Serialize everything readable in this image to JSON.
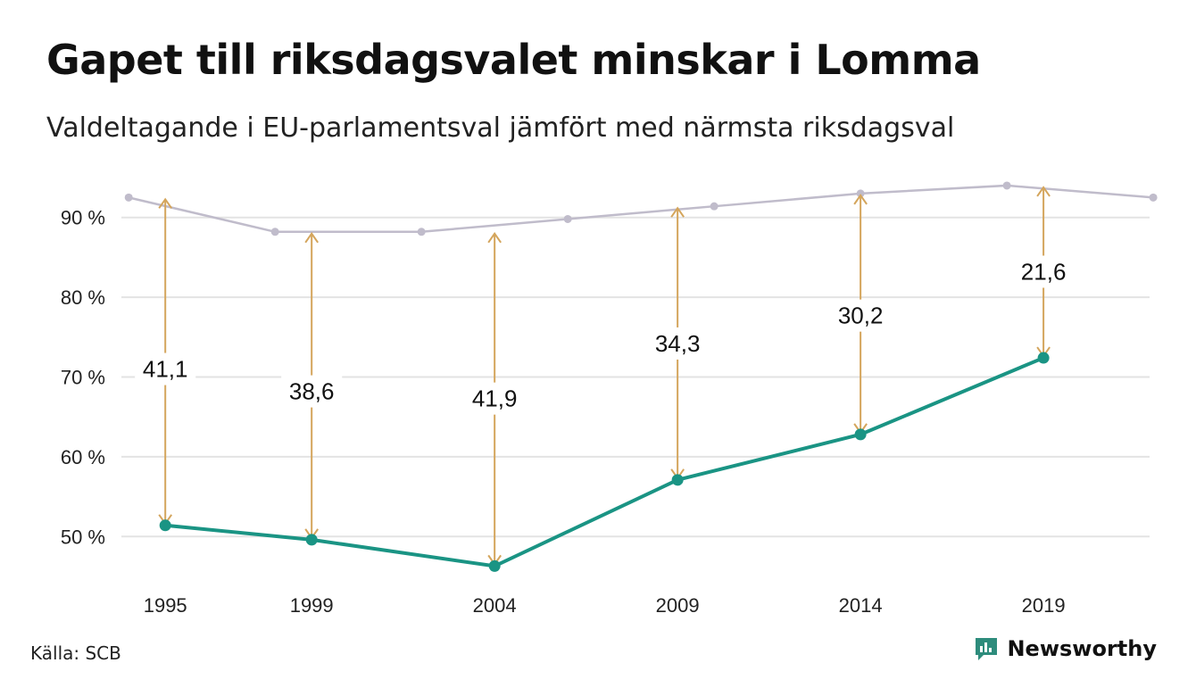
{
  "title": "Gapet till riksdagsvalet minskar i Lomma",
  "subtitle": "Valdeltagande i EU-parlamentsval jämfört med närmsta riksdagsval",
  "source": "Källa: SCB",
  "brand": {
    "name": "Newsworthy",
    "icon": "bar-chart-speech-bubble-icon"
  },
  "colors": {
    "eu": "#1a9484",
    "riksdag": "#c0bccb",
    "gap": "#d4a55c",
    "grid": "#e3e3e3",
    "brand": "#2e8c7c"
  },
  "chart_data": {
    "type": "line",
    "x_ticks": [
      "1995",
      "1999",
      "2004",
      "2009",
      "2014",
      "2019"
    ],
    "y_ticks": [
      "50 %",
      "60 %",
      "70 %",
      "80 %",
      "90 %"
    ],
    "ylim": [
      45,
      95
    ],
    "xlim": [
      1993.8,
      2021.9
    ],
    "grid": true,
    "series": [
      {
        "x": [
          1994,
          1998,
          2002,
          2006,
          2010,
          2014,
          2018,
          2022
        ],
        "values": [
          92.5,
          88.2,
          88.2,
          89.8,
          91.4,
          93.0,
          94.0,
          92.5
        ]
      },
      {
        "x": [
          1995,
          1999,
          2004,
          2009,
          2014,
          2019
        ],
        "values": [
          51.4,
          49.6,
          46.3,
          57.1,
          62.8,
          72.4
        ]
      }
    ],
    "gaps": [
      {
        "x": 1995,
        "top": 92.5,
        "bottom": 51.4,
        "label": "41,1",
        "label_y": 71
      },
      {
        "x": 1999,
        "top": 88.2,
        "bottom": 49.6,
        "label": "38,6",
        "label_y": 68.2
      },
      {
        "x": 2004,
        "top": 88.2,
        "bottom": 46.3,
        "label": "41,9",
        "label_y": 67.3
      },
      {
        "x": 2009,
        "top": 91.4,
        "bottom": 57.1,
        "label": "34,3",
        "label_y": 74.2
      },
      {
        "x": 2014,
        "top": 93.0,
        "bottom": 62.8,
        "label": "30,2",
        "label_y": 77.7
      },
      {
        "x": 2019,
        "top": 94.0,
        "bottom": 72.4,
        "label": "21,6",
        "label_y": 83.2
      }
    ]
  }
}
